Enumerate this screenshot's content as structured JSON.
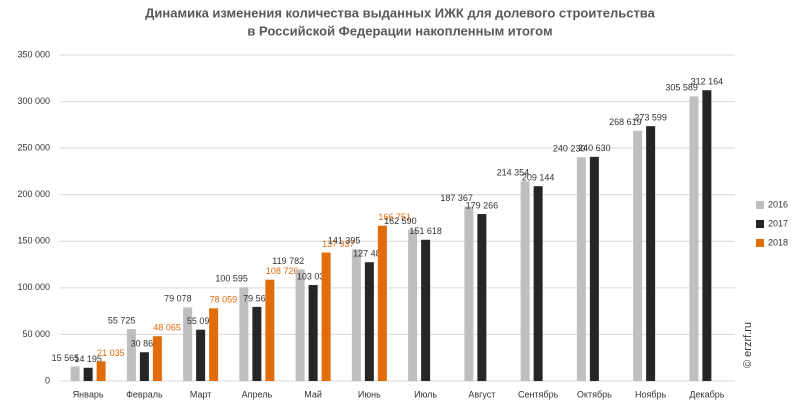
{
  "chart_data": {
    "type": "bar",
    "title": "Динамика изменения количества выданных ИЖК для долевого строительства",
    "subtitle": "в Российской Федерации накопленным итогом",
    "watermark": "© erzrf.ru",
    "categories": [
      "Январь",
      "Февраль",
      "Март",
      "Апрель",
      "Май",
      "Июнь",
      "Июль",
      "Август",
      "Сентябрь",
      "Октябрь",
      "Ноябрь",
      "Декабрь"
    ],
    "series": [
      {
        "name": "2016",
        "color": "#bfbfbf",
        "label_color": "#333333",
        "values": [
          15565,
          55725,
          79078,
          100595,
          119782,
          141395,
          162590,
          187367,
          214354,
          240230,
          268619,
          305589
        ],
        "value_labels": [
          "15 565",
          "55 725",
          "79 078",
          "100 595",
          "119 782",
          "141 395",
          "162 590",
          "187 367",
          "214 354",
          "240 230",
          "268 619",
          "305 589"
        ]
      },
      {
        "name": "2017",
        "color": "#262626",
        "label_color": "#333333",
        "values": [
          14195,
          30865,
          55091,
          79563,
          103030,
          127489,
          151618,
          179266,
          209144,
          240630,
          273599,
          312164
        ],
        "value_labels": [
          "14 195",
          "30 865",
          "55 091",
          "79 563",
          "103 030",
          "127 489",
          "151 618",
          "179 266",
          "209 144",
          "240 630",
          "273 599",
          "312 164"
        ]
      },
      {
        "name": "2018",
        "color": "#e36c0a",
        "label_color": "#e36c0a",
        "values": [
          21035,
          48065,
          78059,
          108726,
          137937,
          166751,
          null,
          null,
          null,
          null,
          null,
          null
        ],
        "value_labels": [
          "21 035",
          "48 065",
          "78 059",
          "108 726",
          "137 937",
          "166 751",
          null,
          null,
          null,
          null,
          null,
          null
        ]
      }
    ],
    "ylim": [
      0,
      350000
    ],
    "yticks": [
      0,
      {
        "value": 50000,
        "label": "50 000"
      },
      {
        "value": 100000,
        "label": "100 000"
      },
      {
        "value": 150000,
        "label": "150 000"
      },
      {
        "value": 200000,
        "label": "200 000"
      },
      {
        "value": 250000,
        "label": "250 000"
      },
      {
        "value": 300000,
        "label": "300 000"
      },
      {
        "value": 350000,
        "label": "350 000"
      }
    ],
    "grid": true,
    "legend": "right"
  }
}
